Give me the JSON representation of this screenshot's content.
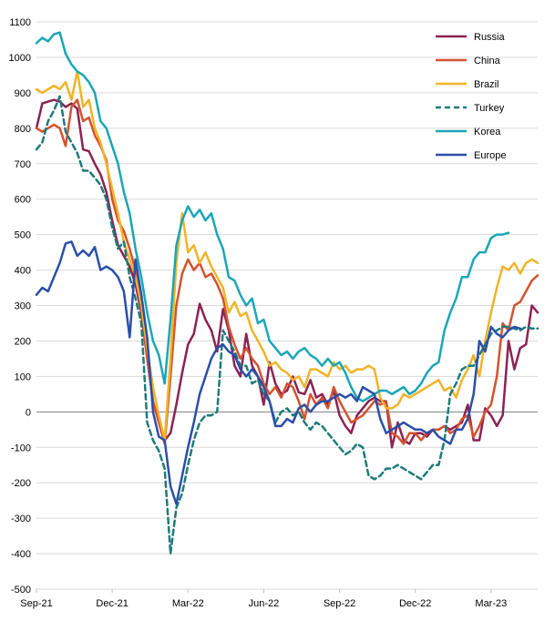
{
  "chart_data": {
    "type": "line",
    "title": "",
    "xlabel": "",
    "ylabel": "",
    "ylim": [
      -500,
      1100
    ],
    "y_ticks": [
      -500,
      -400,
      -300,
      -200,
      -100,
      0,
      100,
      200,
      300,
      400,
      500,
      600,
      700,
      800,
      900,
      1000,
      1100
    ],
    "x_ticks": [
      {
        "label": "Sep-21",
        "x": 0
      },
      {
        "label": "Dec-21",
        "x": 13
      },
      {
        "label": "Mar-22",
        "x": 26
      },
      {
        "label": "Jun-22",
        "x": 39
      },
      {
        "label": "Sep-22",
        "x": 52
      },
      {
        "label": "Dec-22",
        "x": 65
      },
      {
        "label": "Mar-23",
        "x": 78
      }
    ],
    "x_range": [
      0,
      86
    ],
    "grid": "horizontal",
    "zero_line": true,
    "legend_position": "top-right",
    "series": [
      {
        "name": "Russia",
        "color": "#8b2252",
        "dash": "solid",
        "values": [
          800,
          870,
          875,
          880,
          875,
          860,
          870,
          855,
          740,
          735,
          700,
          670,
          620,
          540,
          470,
          440,
          410,
          360,
          280,
          150,
          30,
          -30,
          -80,
          -60,
          20,
          110,
          190,
          220,
          305,
          260,
          230,
          170,
          290,
          230,
          130,
          100,
          220,
          130,
          100,
          20,
          140,
          80,
          50,
          60,
          100,
          55,
          50,
          90,
          40,
          50,
          20,
          60,
          -10,
          -40,
          -60,
          -10,
          10,
          30,
          40,
          30,
          30,
          -100,
          -30,
          -80,
          -90,
          -60,
          -60,
          -70,
          -50,
          -50,
          -40,
          -50,
          -40,
          -30,
          20,
          -80,
          -80,
          10,
          -10,
          -40,
          -10,
          200,
          120,
          180,
          190,
          300,
          280
        ]
      },
      {
        "name": "China",
        "color": "#d5522f",
        "dash": "solid",
        "values": [
          800,
          790,
          800,
          810,
          800,
          750,
          860,
          880,
          820,
          830,
          780,
          750,
          710,
          600,
          540,
          510,
          460,
          400,
          300,
          150,
          30,
          -30,
          -90,
          100,
          300,
          390,
          430,
          400,
          420,
          380,
          390,
          360,
          320,
          240,
          190,
          150,
          180,
          150,
          130,
          80,
          50,
          70,
          40,
          80,
          70,
          30,
          -20,
          50,
          20,
          40,
          10,
          70,
          30,
          0,
          -30,
          -20,
          -10,
          10,
          30,
          20,
          30,
          -60,
          -70,
          -90,
          -60,
          -60,
          -80,
          -60,
          -50,
          -50,
          -40,
          -60,
          -50,
          -20,
          -10,
          -70,
          -40,
          0,
          20,
          100,
          250,
          230,
          300,
          310,
          340,
          370,
          385
        ]
      },
      {
        "name": "Brazil",
        "color": "#f0b429",
        "dash": "solid",
        "values": [
          910,
          900,
          910,
          920,
          910,
          930,
          880,
          960,
          860,
          880,
          800,
          760,
          700,
          630,
          560,
          480,
          430,
          380,
          300,
          180,
          70,
          -10,
          -80,
          150,
          420,
          560,
          450,
          470,
          420,
          450,
          410,
          380,
          350,
          280,
          310,
          270,
          280,
          230,
          200,
          170,
          130,
          140,
          120,
          110,
          90,
          100,
          70,
          120,
          120,
          110,
          100,
          140,
          120,
          130,
          110,
          120,
          120,
          130,
          120,
          40,
          10,
          10,
          20,
          50,
          40,
          50,
          60,
          70,
          80,
          90,
          60,
          70,
          40,
          90,
          120,
          160,
          100,
          200,
          280,
          350,
          410,
          400,
          420,
          390,
          420,
          430,
          420
        ]
      },
      {
        "name": "Turkey",
        "color": "#1f7a7a",
        "dash": "dashed",
        "values": [
          740,
          760,
          820,
          850,
          890,
          790,
          760,
          730,
          680,
          680,
          660,
          640,
          600,
          520,
          460,
          480,
          380,
          320,
          250,
          -30,
          -80,
          -110,
          -160,
          -400,
          -270,
          -230,
          -150,
          -80,
          -30,
          -10,
          -10,
          0,
          230,
          200,
          170,
          130,
          130,
          80,
          90,
          50,
          30,
          -30,
          0,
          10,
          -10,
          0,
          -30,
          -50,
          -30,
          -40,
          -60,
          -80,
          -100,
          -120,
          -110,
          -90,
          -100,
          -180,
          -190,
          -180,
          -160,
          -160,
          -150,
          -160,
          -170,
          -180,
          -190,
          -170,
          -150,
          -150,
          -80,
          50,
          80,
          120,
          130,
          130,
          160,
          190,
          220,
          230,
          240,
          240,
          235,
          230,
          240,
          235,
          235
        ]
      },
      {
        "name": "Korea",
        "color": "#1aa6b7",
        "dash": "solid",
        "values": [
          1040,
          1055,
          1045,
          1065,
          1070,
          1010,
          980,
          960,
          950,
          930,
          900,
          820,
          800,
          750,
          700,
          620,
          560,
          460,
          380,
          280,
          200,
          160,
          80,
          260,
          470,
          540,
          580,
          550,
          570,
          540,
          560,
          500,
          460,
          380,
          370,
          330,
          300,
          320,
          250,
          260,
          200,
          180,
          160,
          170,
          150,
          170,
          180,
          160,
          150,
          130,
          150,
          130,
          140,
          110,
          70,
          40,
          30,
          40,
          50,
          60,
          60,
          50,
          60,
          70,
          50,
          60,
          80,
          110,
          130,
          140,
          230,
          280,
          320,
          380,
          380,
          430,
          450,
          450,
          490,
          500,
          500,
          505
        ]
      },
      {
        "name": "Europe",
        "color": "#2a4fa8",
        "dash": "solid",
        "values": [
          330,
          350,
          340,
          380,
          420,
          475,
          480,
          440,
          455,
          440,
          465,
          400,
          410,
          400,
          380,
          340,
          210,
          430,
          330,
          210,
          0,
          -70,
          -80,
          -210,
          -260,
          -180,
          -100,
          -30,
          50,
          100,
          150,
          180,
          190,
          170,
          160,
          120,
          100,
          120,
          100,
          70,
          30,
          -40,
          -40,
          -20,
          -30,
          10,
          20,
          0,
          20,
          30,
          30,
          40,
          50,
          40,
          50,
          30,
          70,
          60,
          50,
          -20,
          -60,
          -50,
          -40,
          -30,
          -40,
          -50,
          -50,
          -60,
          -50,
          -70,
          -80,
          -90,
          -50,
          -50,
          -20,
          50,
          200,
          170,
          240,
          220,
          210,
          230,
          240,
          235
        ]
      }
    ]
  }
}
